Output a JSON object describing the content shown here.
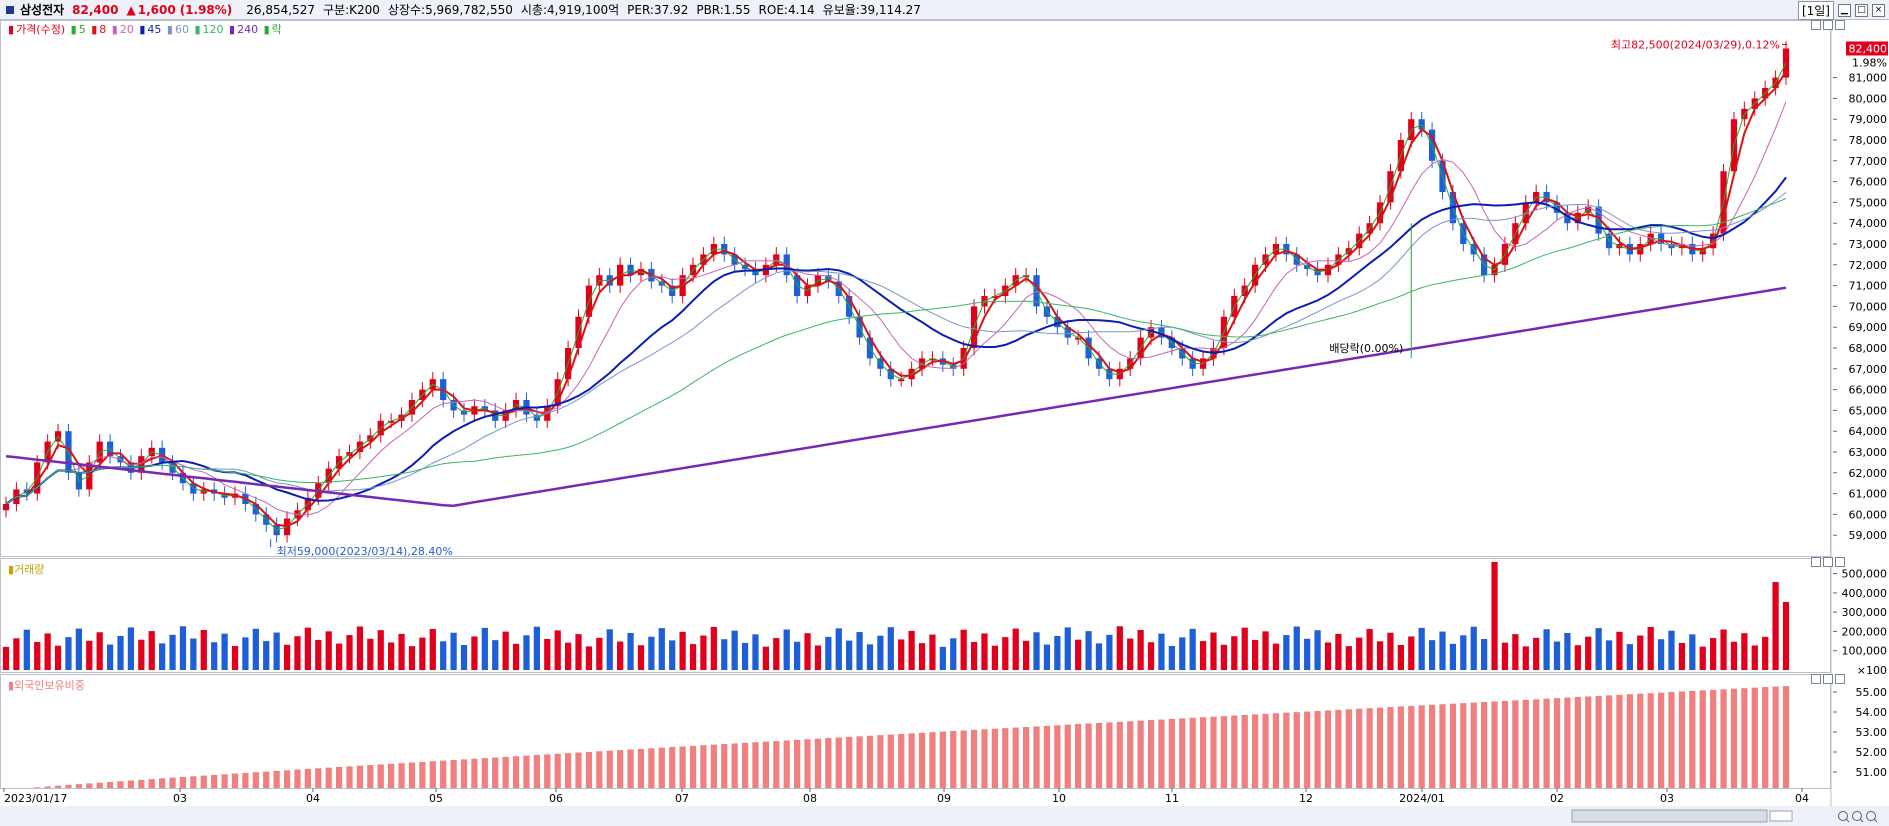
{
  "header": {
    "name": "삼성전자",
    "price": "82,400",
    "arrow": "▲",
    "change": "1,600",
    "change_pct": "(1.98%)",
    "volume": "26,854,527",
    "market": "구분:K200",
    "shares": "상장수:5,969,782,550",
    "mktcap": "시총:4,919,100억",
    "per": "PER:37.92",
    "pbr": "PBR:1.55",
    "roe": "ROE:4.14",
    "float": "유보율:39,114.27",
    "period": "[1일]"
  },
  "legend": {
    "price_label": "가격(수정)",
    "ma5": "5",
    "ma8": "8",
    "ma20": "20",
    "ma45": "45",
    "ma60": "60",
    "ma120": "120",
    "ma240": "240",
    "ex_div": "락"
  },
  "colors": {
    "up": "#e0001c",
    "down": "#1e5fd8",
    "ma5": "#2ea82e",
    "ma8": "#d81414",
    "ma20": "#c864b4",
    "ma45": "#0a1eb4",
    "ma60": "#7896c8",
    "ma120": "#3cb464",
    "ma240": "#7828b4",
    "foreign": "#f08080"
  },
  "annotations": {
    "high": "최고82,500(2024/03/29),0.12%",
    "low": "최저59,000(2023/03/14),28.40%",
    "dividend": "배당락(0.00%)",
    "last_price": "82,400",
    "last_pct": "1.98%"
  },
  "volume_pane": {
    "title": "거래량",
    "unit_label": "×100"
  },
  "foreign_pane": {
    "title": "외국인보유비중"
  },
  "chart_data": [
    {
      "type": "candlestick",
      "title": "가격(수정)",
      "ylim": [
        58000,
        83000
      ],
      "y_ticks": [
        59000,
        60000,
        61000,
        62000,
        63000,
        64000,
        65000,
        66000,
        67000,
        68000,
        69000,
        70000,
        71000,
        72000,
        73000,
        74000,
        75000,
        76000,
        77000,
        78000,
        79000,
        80000,
        81000
      ],
      "x_ticks": [
        "2023/01/17",
        "03",
        "04",
        "05",
        "06",
        "07",
        "08",
        "09",
        "10",
        "11",
        "12",
        "2024/01",
        "02",
        "03",
        "04"
      ],
      "close": [
        60500,
        61200,
        61000,
        62500,
        63500,
        64000,
        62000,
        61200,
        62500,
        63500,
        62800,
        62500,
        62000,
        62800,
        63200,
        62500,
        62000,
        61500,
        61000,
        61200,
        61000,
        60800,
        61000,
        60500,
        60000,
        59500,
        59000,
        59800,
        60200,
        60800,
        61500,
        62200,
        62800,
        63000,
        63500,
        63800,
        64500,
        64500,
        64800,
        65500,
        66000,
        66500,
        65500,
        65000,
        64800,
        65200,
        65000,
        64500,
        65000,
        65500,
        64800,
        64500,
        65200,
        66500,
        68000,
        69500,
        71000,
        71500,
        71000,
        72000,
        71500,
        71800,
        71200,
        71000,
        70500,
        71500,
        72000,
        72500,
        73000,
        72500,
        72000,
        71800,
        71500,
        72000,
        72500,
        71500,
        70500,
        71000,
        71500,
        71200,
        70500,
        69500,
        68500,
        67500,
        67000,
        66500,
        66500,
        67000,
        67500,
        67500,
        67200,
        67000,
        68000,
        70000,
        70500,
        70500,
        71000,
        71500,
        71500,
        70000,
        69500,
        69000,
        68500,
        68500,
        67500,
        67000,
        66500,
        67000,
        67500,
        68500,
        69000,
        68500,
        68000,
        67500,
        67000,
        67500,
        68000,
        69500,
        70500,
        71000,
        72000,
        72500,
        73000,
        72500,
        72000,
        71800,
        71500,
        72000,
        72500,
        72800,
        73500,
        74000,
        75000,
        76500,
        78000,
        79000,
        78500,
        77000,
        75500,
        74000,
        73000,
        72500,
        71500,
        72000,
        73000,
        74000,
        75000,
        75500,
        75000,
        74500,
        74000,
        74500,
        74800,
        73500,
        72800,
        73000,
        72500,
        73000,
        73500,
        73000,
        72800,
        73000,
        72500,
        72800,
        73500,
        76500,
        79000,
        79500,
        80000,
        80500,
        81000,
        82400
      ],
      "ohlc_note": "Daily candles, approx 300 trading days 2023/01/17 - 2024/03/29; closes subsampled",
      "series": [
        {
          "name": "5"
        },
        {
          "name": "8"
        },
        {
          "name": "20"
        },
        {
          "name": "45"
        },
        {
          "name": "60"
        },
        {
          "name": "120"
        },
        {
          "name": "240"
        }
      ]
    },
    {
      "type": "bar",
      "title": "거래량",
      "ylim": [
        0,
        560000
      ],
      "y_ticks": [
        100000,
        200000,
        300000,
        400000,
        500000
      ]
    },
    {
      "type": "bar",
      "title": "외국인보유비중",
      "ylim": [
        50.2,
        55.8
      ],
      "y_ticks": [
        51.0,
        52.0,
        53.0,
        54.0,
        55.0
      ],
      "values_range": [
        50.1,
        55.3
      ]
    }
  ]
}
